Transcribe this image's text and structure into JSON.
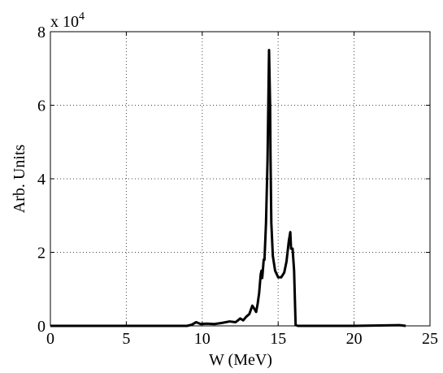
{
  "chart_data": {
    "type": "line",
    "xlabel": "W (MeV)",
    "ylabel": "Arb. Units",
    "y_exponent_base": "x 10",
    "y_exponent_power": "4",
    "xlim": [
      0,
      25
    ],
    "ylim": [
      0,
      8
    ],
    "x_ticks": [
      0,
      5,
      10,
      15,
      20,
      25
    ],
    "y_ticks": [
      0,
      2,
      4,
      6,
      8
    ],
    "grid": true,
    "grid_style": "dotted",
    "line_color": "#000000",
    "series": [
      {
        "x": [
          0,
          9.0,
          9.3,
          9.6,
          9.9,
          10.3,
          10.8,
          11.3,
          11.8,
          12.2,
          12.5,
          12.7,
          12.9,
          13.1,
          13.3,
          13.45,
          13.55,
          13.65,
          13.75,
          13.85,
          13.9,
          13.95,
          14.05,
          14.1,
          14.2,
          14.3,
          14.4,
          14.47,
          14.5,
          14.55,
          14.65,
          14.8,
          15.0,
          15.2,
          15.4,
          15.55,
          15.7,
          15.8,
          15.85,
          15.95,
          16.05,
          16.15,
          16.3,
          17,
          20,
          23,
          23.4
        ],
        "y": [
          0,
          0,
          0.03,
          0.1,
          0.05,
          0.06,
          0.05,
          0.08,
          0.12,
          0.1,
          0.2,
          0.15,
          0.25,
          0.32,
          0.55,
          0.45,
          0.38,
          0.6,
          0.9,
          1.4,
          1.5,
          1.3,
          1.8,
          1.8,
          2.8,
          4.5,
          7.5,
          6.0,
          4.5,
          2.8,
          1.9,
          1.5,
          1.32,
          1.32,
          1.45,
          1.75,
          2.3,
          2.55,
          2.1,
          2.1,
          1.5,
          0.02,
          0,
          0,
          0,
          0.02,
          0
        ]
      }
    ]
  }
}
